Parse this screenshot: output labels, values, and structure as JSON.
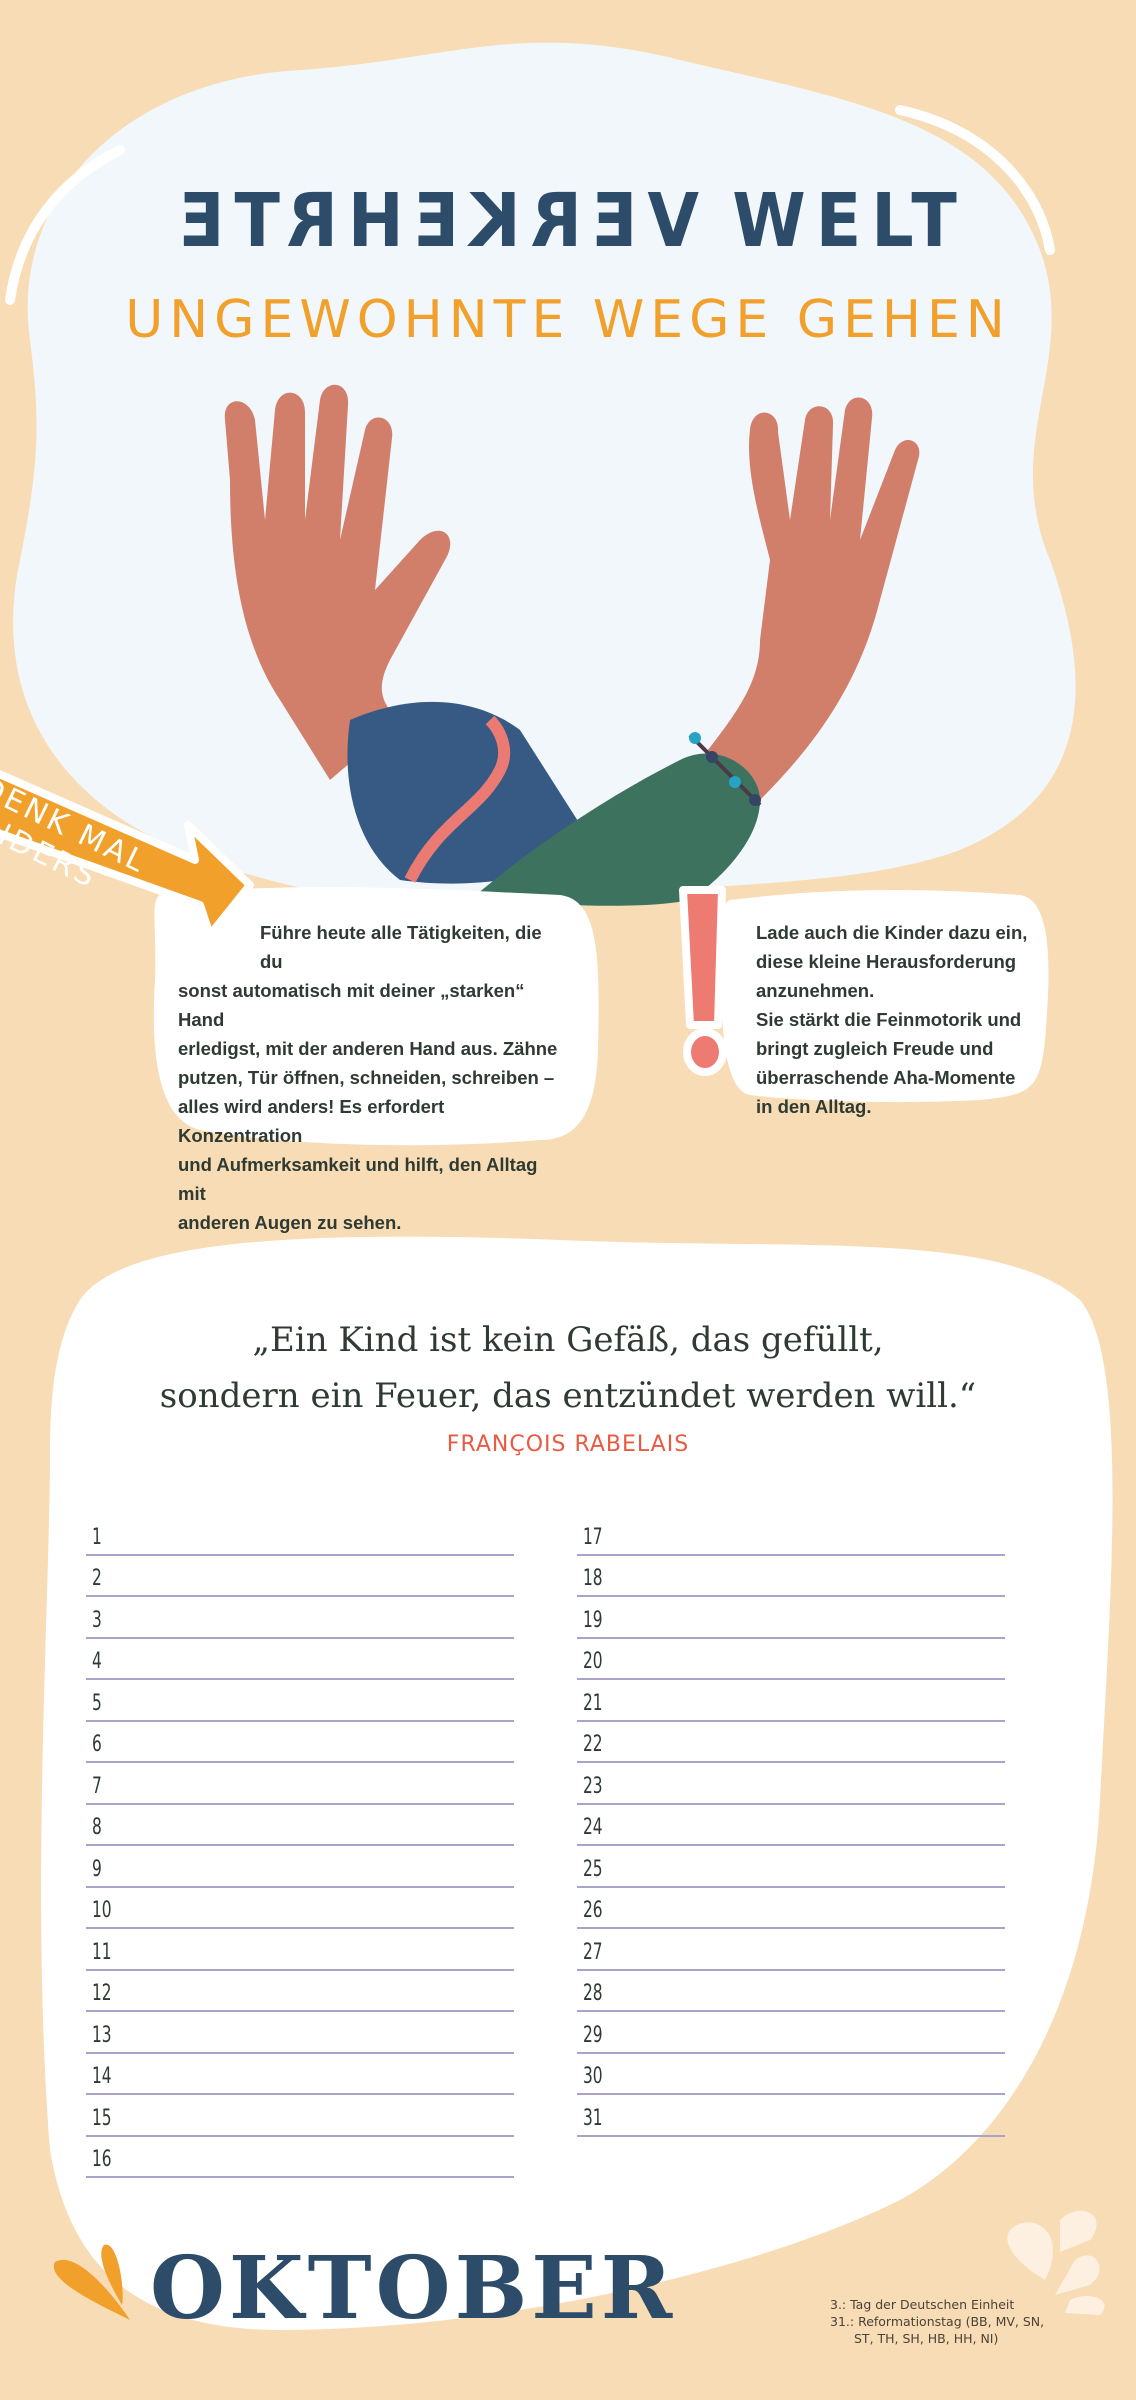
{
  "header": {
    "title_mirrored": "VERKEHRTE",
    "title_normal": "WELT",
    "subtitle": "UNGEWOHNTE WEGE GEHEN"
  },
  "banner": {
    "label": "DENK MAL ANDERS",
    "icon": "arrow-icon"
  },
  "tip_box": {
    "lines": [
      "Führe heute alle Tätigkeiten, die du",
      "sonst automatisch mit deiner „starken“ Hand",
      "erledigst, mit der anderen Hand aus. Zähne",
      "putzen, Tür öffnen, schneiden, schreiben –",
      "alles wird anders! Es erfordert Konzentration",
      "und Aufmerksamkeit und hilft, den Alltag mit",
      "anderen Augen zu sehen."
    ]
  },
  "note_box": {
    "icon": "exclamation-icon",
    "lines": [
      "Lade auch die Kinder dazu ein,",
      "diese kleine Herausforderung",
      "anzunehmen.",
      "Sie stärkt die Feinmotorik und",
      "bringt zugleich Freude und",
      "überraschende Aha-Momente",
      "in den Alltag."
    ]
  },
  "quote": {
    "line1": "„Ein Kind ist kein Gefäß, das gefüllt,",
    "line2": "sondern ein Feuer, das entzündet werden will.“",
    "author": "FRANÇOIS RABELAIS"
  },
  "calendar": {
    "left_days": [
      "1",
      "2",
      "3",
      "4",
      "5",
      "6",
      "7",
      "8",
      "9",
      "10",
      "11",
      "12",
      "13",
      "14",
      "15",
      "16"
    ],
    "right_days": [
      "17",
      "18",
      "19",
      "20",
      "21",
      "22",
      "23",
      "24",
      "25",
      "26",
      "27",
      "28",
      "29",
      "30",
      "31"
    ]
  },
  "footer": {
    "month": "OKTOBER",
    "holidays": [
      "3.: Tag der Deutschen Einheit",
      "31.: Reformationstag (BB, MV, SN,",
      "ST, TH, SH, HB, HH, NI)"
    ]
  },
  "colors": {
    "background": "#f8dcb5",
    "navy": "#2d4c69",
    "orange": "#f0a02b",
    "coral": "#ea5a43",
    "line": "#a9a3c9"
  }
}
